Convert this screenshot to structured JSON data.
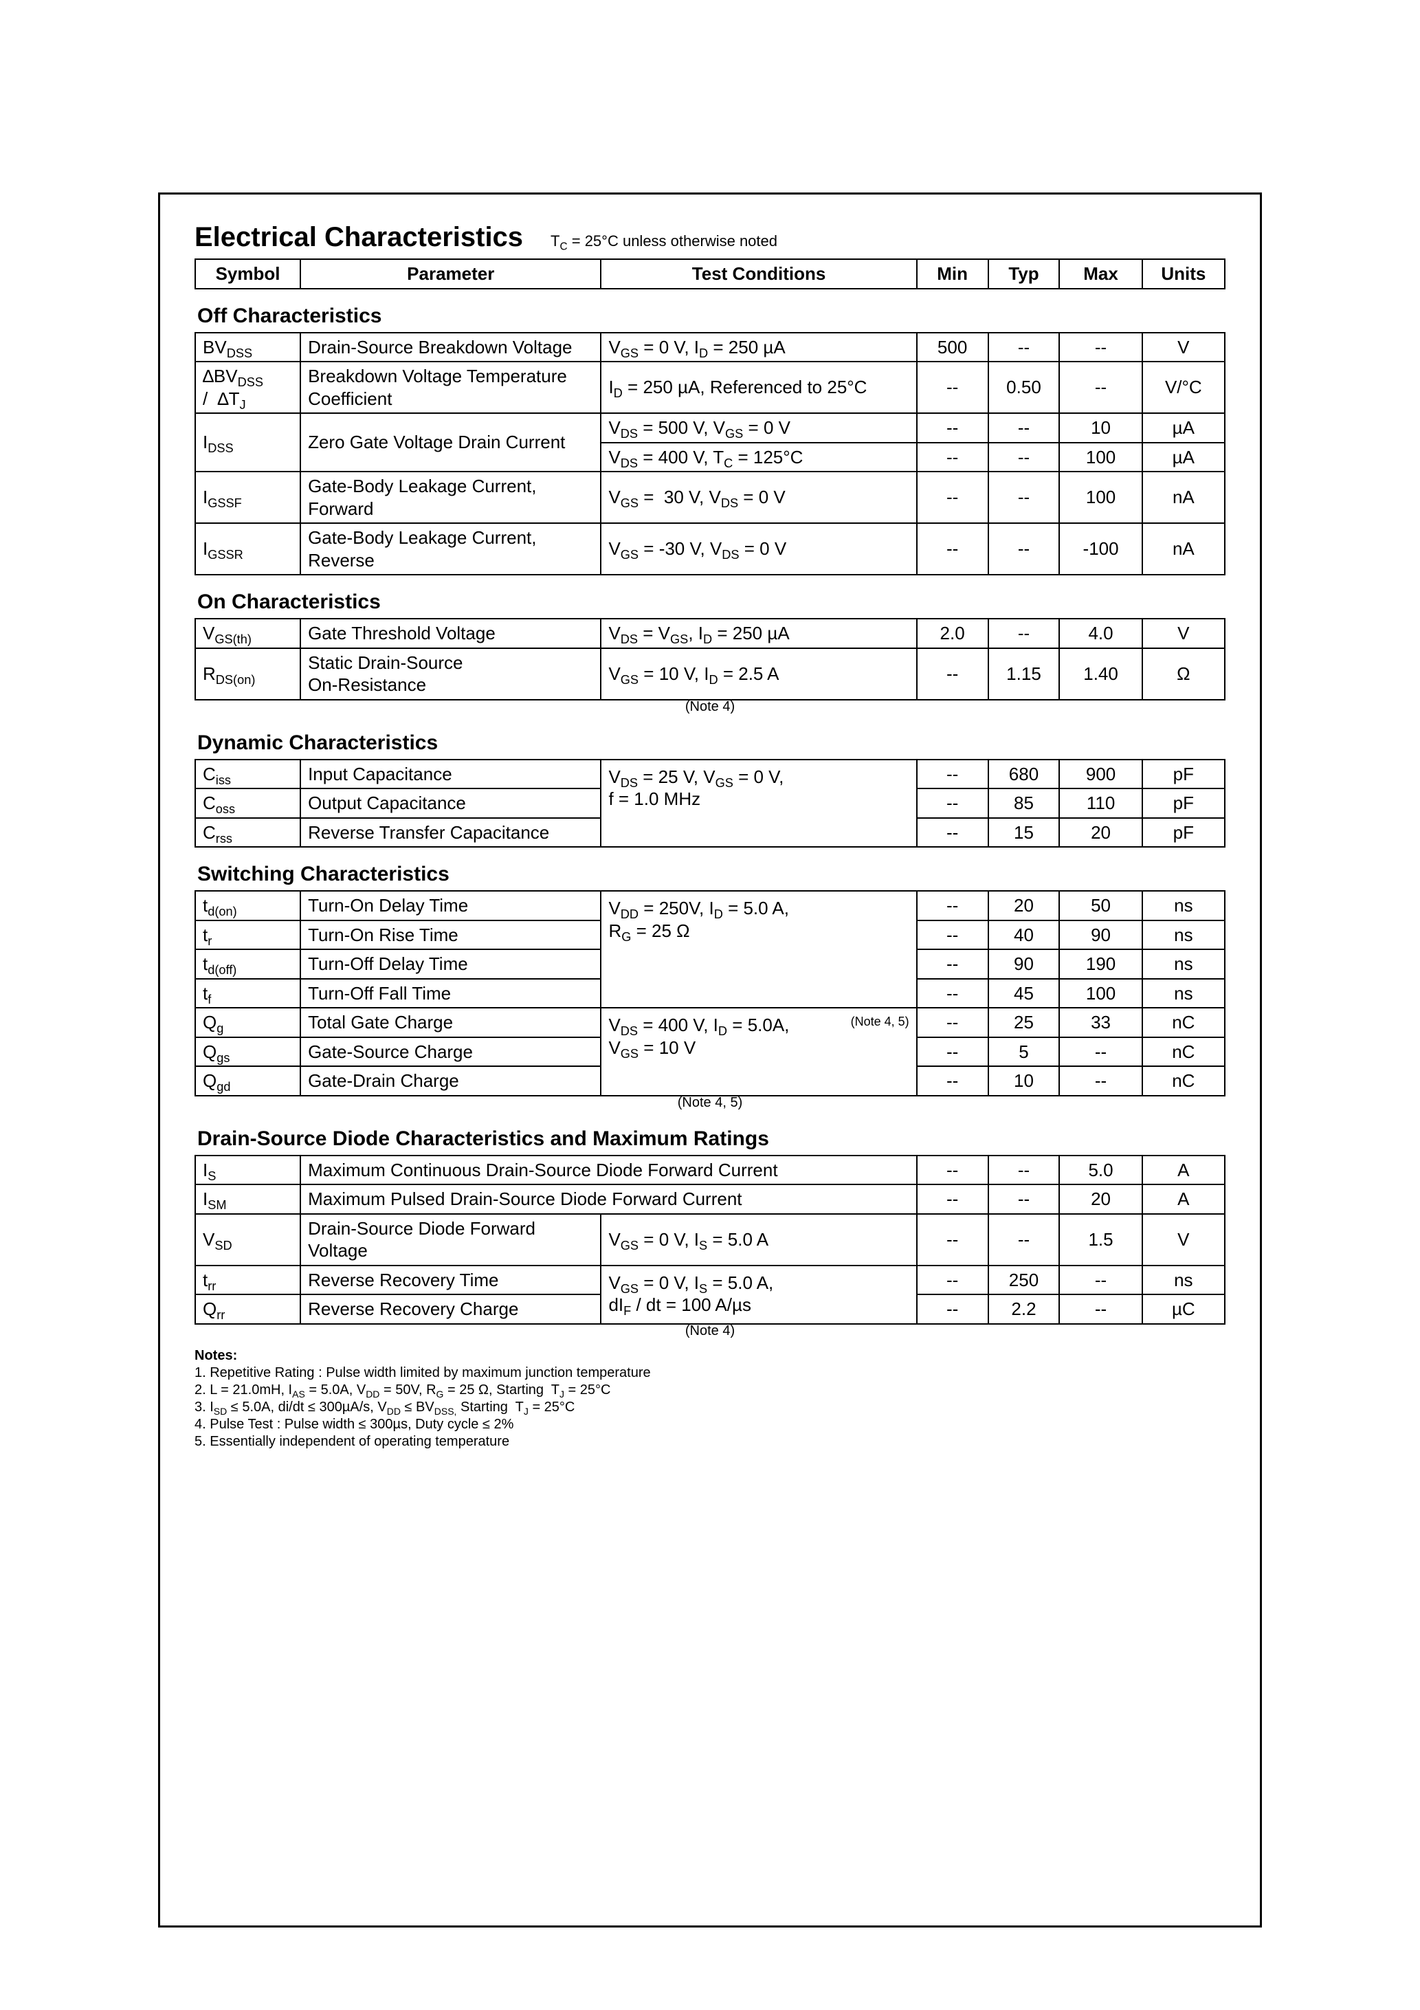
{
  "title": "Electrical Characteristics",
  "subtitle_html": "T<sub>C</sub> = 25°C unless otherwise noted",
  "header": {
    "symbol": "Symbol",
    "parameter": "Parameter",
    "conditions": "Test Conditions",
    "min": "Min",
    "typ": "Typ",
    "max": "Max",
    "units": "Units"
  },
  "sections": [
    {
      "heading": "Off Characteristics",
      "rows": [
        {
          "sym_html": "BV<sub>DSS</sub>",
          "param": "Drain-Source Breakdown Voltage",
          "cond_html": "V<sub>GS</sub> = 0 V, I<sub>D</sub> = 250 µA",
          "min": "500",
          "typ": "--",
          "max": "--",
          "unit": "V"
        },
        {
          "sym_html": "∆BV<sub>DSS</sub><br>/&nbsp;&nbsp;∆T<sub>J</sub>",
          "param": "Breakdown Voltage Temperature Coefficient",
          "cond_html": "I<sub>D</sub> = 250 µA, Referenced to 25°C",
          "min": "--",
          "typ": "0.50",
          "max": "--",
          "unit": "V/°C"
        },
        {
          "sym_html": "I<sub>DSS</sub>",
          "sym_rowspan": 2,
          "param": "Zero Gate Voltage Drain Current",
          "param_rowspan": 2,
          "cond_html": "V<sub>DS</sub> = 500 V, V<sub>GS</sub> = 0 V",
          "min": "--",
          "typ": "--",
          "max": "10",
          "unit": "µA"
        },
        {
          "cond_html": "V<sub>DS</sub> = 400 V, T<sub>C</sub> = 125°C",
          "min": "--",
          "typ": "--",
          "max": "100",
          "unit": "µA"
        },
        {
          "sym_html": "I<sub>GSSF</sub>",
          "param": "Gate-Body Leakage Current, Forward",
          "cond_html": "V<sub>GS</sub> =&nbsp;&nbsp;30 V, V<sub>DS</sub> = 0 V",
          "min": "--",
          "typ": "--",
          "max": "100",
          "unit": "nA"
        },
        {
          "sym_html": "I<sub>GSSR</sub>",
          "param": "Gate-Body Leakage Current, Reverse",
          "cond_html": "V<sub>GS</sub> = -30 V, V<sub>DS</sub> = 0 V",
          "min": "--",
          "typ": "--",
          "max": "-100",
          "unit": "nA"
        }
      ],
      "footer_note": null
    },
    {
      "heading": "On Characteristics",
      "rows": [
        {
          "sym_html": "V<sub>GS(th)</sub>",
          "param": "Gate Threshold Voltage",
          "cond_html": "V<sub>DS</sub> = V<sub>GS</sub>, I<sub>D</sub> = 250 µA",
          "min": "2.0",
          "typ": "--",
          "max": "4.0",
          "unit": "V"
        },
        {
          "sym_html": "R<sub>DS(on)</sub>",
          "param": "Static Drain-Source<br>On-Resistance",
          "cond_html": "V<sub>GS</sub> = 10 V, I<sub>D</sub> = 2.5 A",
          "min": "--",
          "typ": "1.15",
          "max": "1.40",
          "unit": "Ω"
        }
      ],
      "footer_note": "(Note 4)"
    },
    {
      "heading": "Dynamic Characteristics",
      "rows": [
        {
          "sym_html": "C<sub>iss</sub>",
          "param": "Input Capacitance",
          "cond_html": "V<sub>DS</sub> = 25 V, V<sub>GS</sub> = 0 V,<br>f = 1.0 MHz",
          "cond_rowspan": 3,
          "min": "--",
          "typ": "680",
          "max": "900",
          "unit": "pF"
        },
        {
          "sym_html": "C<sub>oss</sub>",
          "param": "Output Capacitance",
          "min": "--",
          "typ": "85",
          "max": "110",
          "unit": "pF"
        },
        {
          "sym_html": "C<sub>rss</sub>",
          "param": "Reverse Transfer Capacitance",
          "min": "--",
          "typ": "15",
          "max": "20",
          "unit": "pF"
        }
      ],
      "footer_note": null
    },
    {
      "heading": "Switching Characteristics",
      "rows": [
        {
          "sym_html": "t<sub>d(on)</sub>",
          "param": "Turn-On Delay Time",
          "cond_html": "V<sub>DD</sub> = 250V, I<sub>D</sub> = 5.0 A,<br>R<sub>G</sub> = 25 Ω",
          "cond_rowspan": 4,
          "min": "--",
          "typ": "20",
          "max": "50",
          "unit": "ns"
        },
        {
          "sym_html": "t<sub>r</sub>",
          "param": "Turn-On Rise Time",
          "min": "--",
          "typ": "40",
          "max": "90",
          "unit": "ns"
        },
        {
          "sym_html": "t<sub>d(off)</sub>",
          "param": "Turn-Off Delay Time",
          "min": "--",
          "typ": "90",
          "max": "190",
          "unit": "ns"
        },
        {
          "sym_html": "t<sub>f</sub>",
          "param": "Turn-Off Fall Time",
          "min": "--",
          "typ": "45",
          "max": "100",
          "unit": "ns"
        },
        {
          "sym_html": "Q<sub>g</sub>",
          "param": "Total Gate Charge",
          "cond_html": "V<sub>DS</sub> = 400 V, I<sub>D</sub> = 5.0A,&nbsp;&nbsp;<span class='note-inline'>(Note 4, 5)</span><br>V<sub>GS</sub> = 10 V",
          "cond_rowspan": 3,
          "min": "--",
          "typ": "25",
          "max": "33",
          "unit": "nC"
        },
        {
          "sym_html": "Q<sub>gs</sub>",
          "param": "Gate-Source Charge",
          "min": "--",
          "typ": "5",
          "max": "--",
          "unit": "nC"
        },
        {
          "sym_html": "Q<sub>gd</sub>",
          "param": "Gate-Drain Charge",
          "min": "--",
          "typ": "10",
          "max": "--",
          "unit": "nC"
        }
      ],
      "footer_note": "(Note 4, 5)"
    },
    {
      "heading": "Drain-Source Diode Characteristics and Maximum Ratings",
      "rows": [
        {
          "sym_html": "I<sub>S</sub>",
          "param": "Maximum Continuous Drain-Source Diode Forward Current",
          "param_colspan": 2,
          "min": "--",
          "typ": "--",
          "max": "5.0",
          "unit": "A"
        },
        {
          "sym_html": "I<sub>SM</sub>",
          "param": "Maximum Pulsed Drain-Source Diode Forward Current",
          "param_colspan": 2,
          "min": "--",
          "typ": "--",
          "max": "20",
          "unit": "A"
        },
        {
          "sym_html": "V<sub>SD</sub>",
          "param": "Drain-Source Diode Forward Voltage",
          "cond_html": "V<sub>GS</sub> = 0 V, I<sub>S</sub> = 5.0 A",
          "min": "--",
          "typ": "--",
          "max": "1.5",
          "unit": "V"
        },
        {
          "sym_html": "t<sub>rr</sub>",
          "param": "Reverse Recovery Time",
          "cond_html": "V<sub>GS</sub> = 0 V, I<sub>S</sub> = 5.0 A,<br>dI<sub>F</sub> / dt = 100 A/µs",
          "cond_rowspan": 2,
          "min": "--",
          "typ": "250",
          "max": "--",
          "unit": "ns"
        },
        {
          "sym_html": "Q<sub>rr</sub>",
          "param": "Reverse Recovery Charge",
          "min": "--",
          "typ": "2.2",
          "max": "--",
          "unit": "µC"
        }
      ],
      "footer_note": "(Note 4)"
    }
  ],
  "notes": {
    "heading": "Notes:",
    "items_html": [
      "1. Repetitive Rating : Pulse width limited by maximum junction temperature",
      "2. L = 21.0mH, I<sub>AS</sub> = 5.0A, V<sub>DD</sub> = 50V, R<sub>G</sub> = 25 Ω, Starting&nbsp; T<sub>J</sub> = 25°C",
      "3. I<sub>SD</sub> ≤ 5.0A, di/dt ≤ 300µA/s, V<sub>DD</sub> ≤ BV<sub>DSS,</sub> Starting&nbsp; T<sub>J</sub> = 25°C",
      "4. Pulse Test : Pulse width ≤ 300µs, Duty cycle ≤ 2%",
      "5. Essentially independent of operating temperature"
    ]
  }
}
